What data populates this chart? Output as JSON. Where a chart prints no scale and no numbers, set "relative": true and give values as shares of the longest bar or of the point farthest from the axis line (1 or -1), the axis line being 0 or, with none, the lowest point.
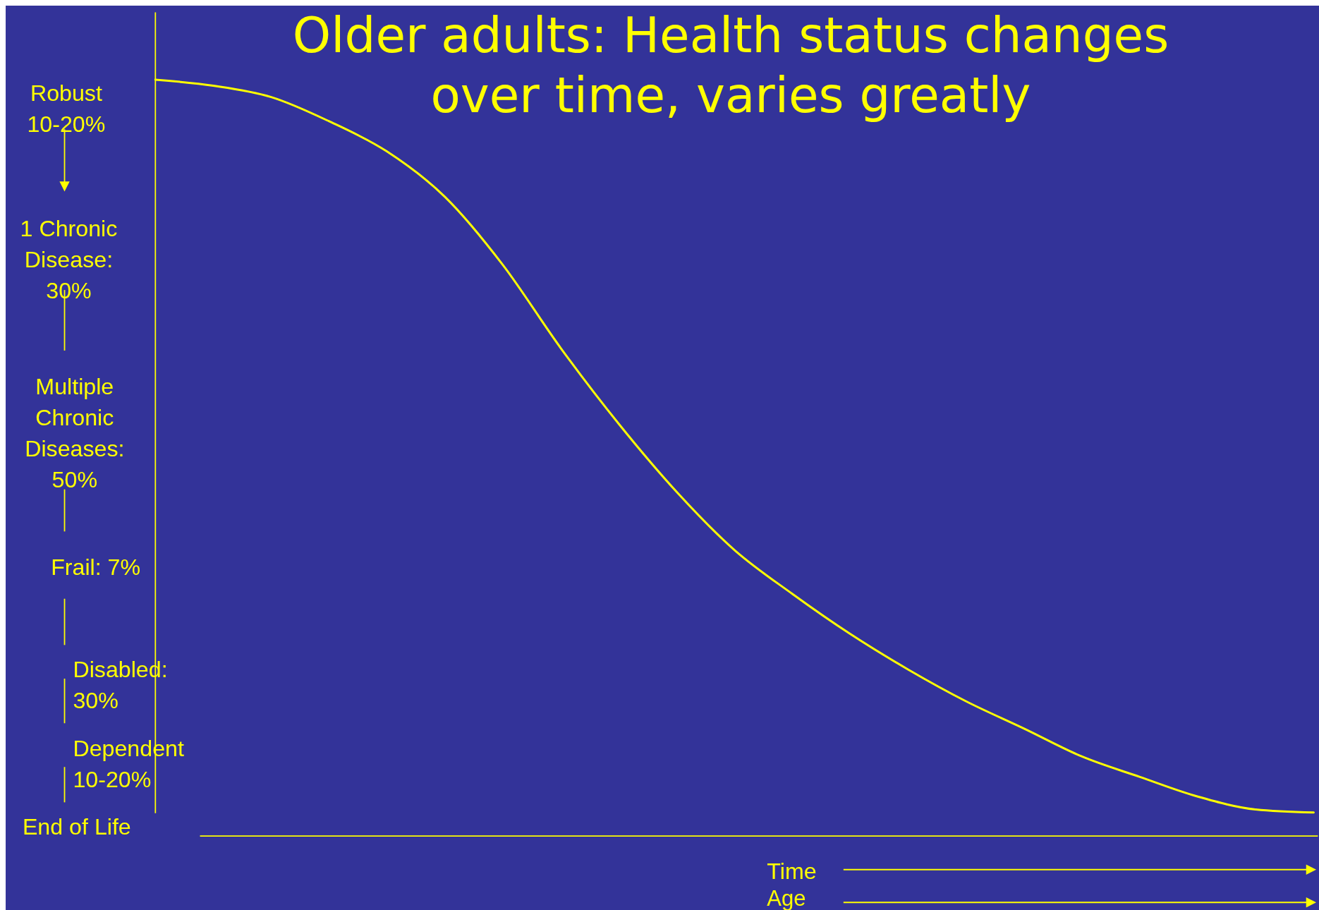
{
  "chart_data": {
    "type": "line",
    "title": "Older adults: Health status changes over time, varies greatly",
    "relative": true,
    "xlabel": "Time",
    "categories": [
      null,
      null,
      null,
      null,
      null,
      null,
      null,
      null,
      null,
      null,
      null,
      null,
      null,
      null,
      null,
      null,
      null,
      null,
      null,
      null,
      null
    ],
    "series": [
      {
        "color": "#ffff00",
        "values": [
          1.0,
          0.992,
          0.977,
          0.945,
          0.905,
          0.845,
          0.755,
          0.645,
          0.545,
          0.455,
          0.378,
          0.32,
          0.267,
          0.22,
          0.178,
          0.142,
          0.105,
          0.078,
          0.052,
          0.035,
          0.031
        ]
      }
    ],
    "annotations": [
      "Robust\n10-20%",
      "1 Chronic\nDisease:\n30%",
      "Multiple\nChronic\nDiseases:\n50%",
      "Frail: 7%",
      "Disabled:\n30%",
      "Dependent\n10-20%",
      "End of Life",
      "Age"
    ]
  }
}
